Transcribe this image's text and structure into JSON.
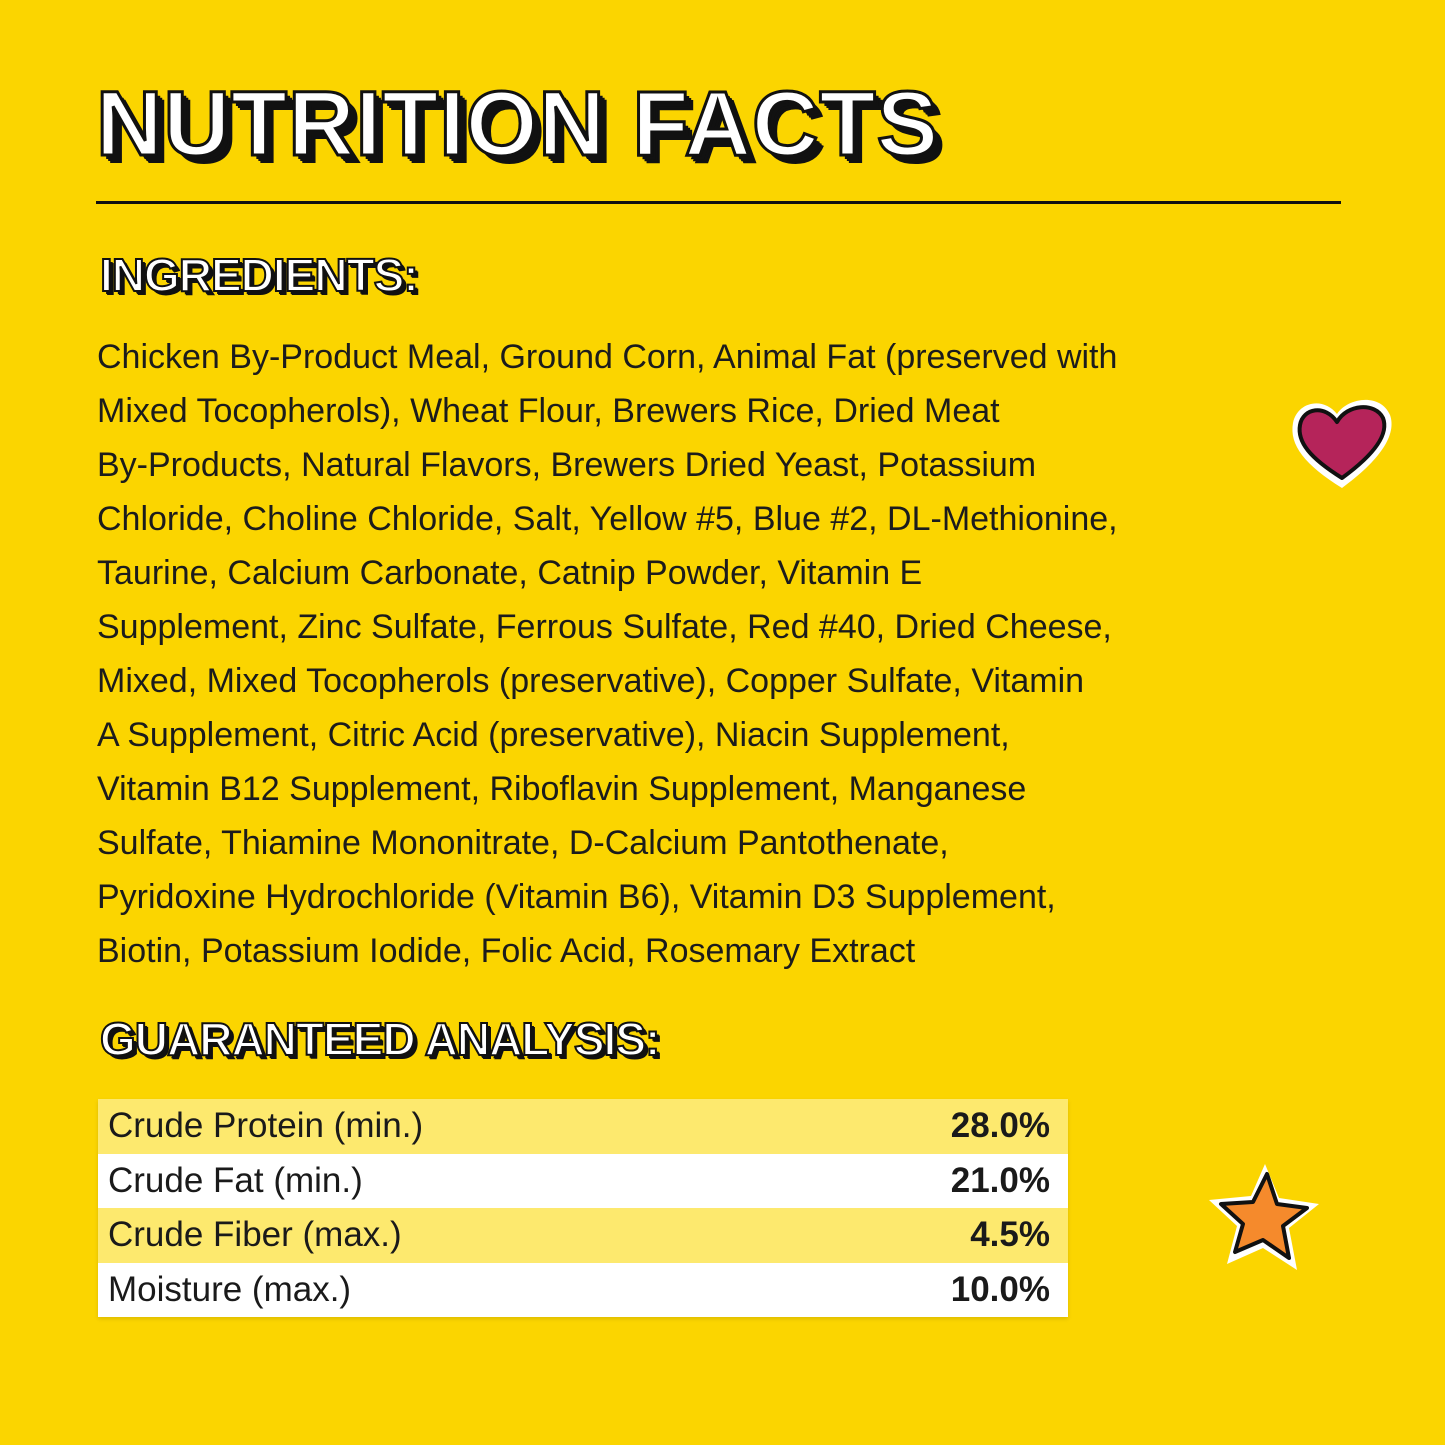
{
  "title": "NUTRITION FACTS",
  "ingredients": {
    "heading": "INGREDIENTS:",
    "lines": [
      "Chicken By-Product Meal, Ground Corn, Animal Fat (preserved with",
      "Mixed Tocopherols), Wheat Flour, Brewers Rice, Dried Meat",
      "By-Products, Natural Flavors, Brewers Dried Yeast, Potassium",
      "Chloride, Choline Chloride, Salt, Yellow #5, Blue #2, DL-Methionine,",
      "Taurine, Calcium Carbonate, Catnip Powder, Vitamin E",
      "Supplement, Zinc Sulfate, Ferrous Sulfate, Red #40, Dried Cheese,",
      "Mixed, Mixed Tocopherols (preservative), Copper Sulfate, Vitamin",
      "A Supplement, Citric Acid (preservative), Niacin Supplement,",
      "Vitamin B12 Supplement, Riboflavin Supplement, Manganese",
      "Sulfate, Thiamine Mononitrate, D-Calcium Pantothenate,",
      "Pyridoxine Hydrochloride (Vitamin B6), Vitamin D3 Supplement,",
      "Biotin, Potassium Iodide, Folic Acid, Rosemary Extract"
    ]
  },
  "analysis": {
    "heading": "GUARANTEED ANALYSIS:",
    "rows": [
      {
        "label": "Crude Protein (min.)",
        "value": "28.0%"
      },
      {
        "label": "Crude Fat (min.)",
        "value": "21.0%"
      },
      {
        "label": "Crude Fiber (max.)",
        "value": "4.5%"
      },
      {
        "label": "Moisture (max.)",
        "value": "10.0%"
      }
    ]
  },
  "decorations": {
    "heart_icon": "heart-icon",
    "star_icon": "star-icon"
  },
  "colors": {
    "background": "#FBD500",
    "heart": "#B5245A",
    "star": "#F58A2C",
    "row_highlight": "#FDE96E"
  }
}
